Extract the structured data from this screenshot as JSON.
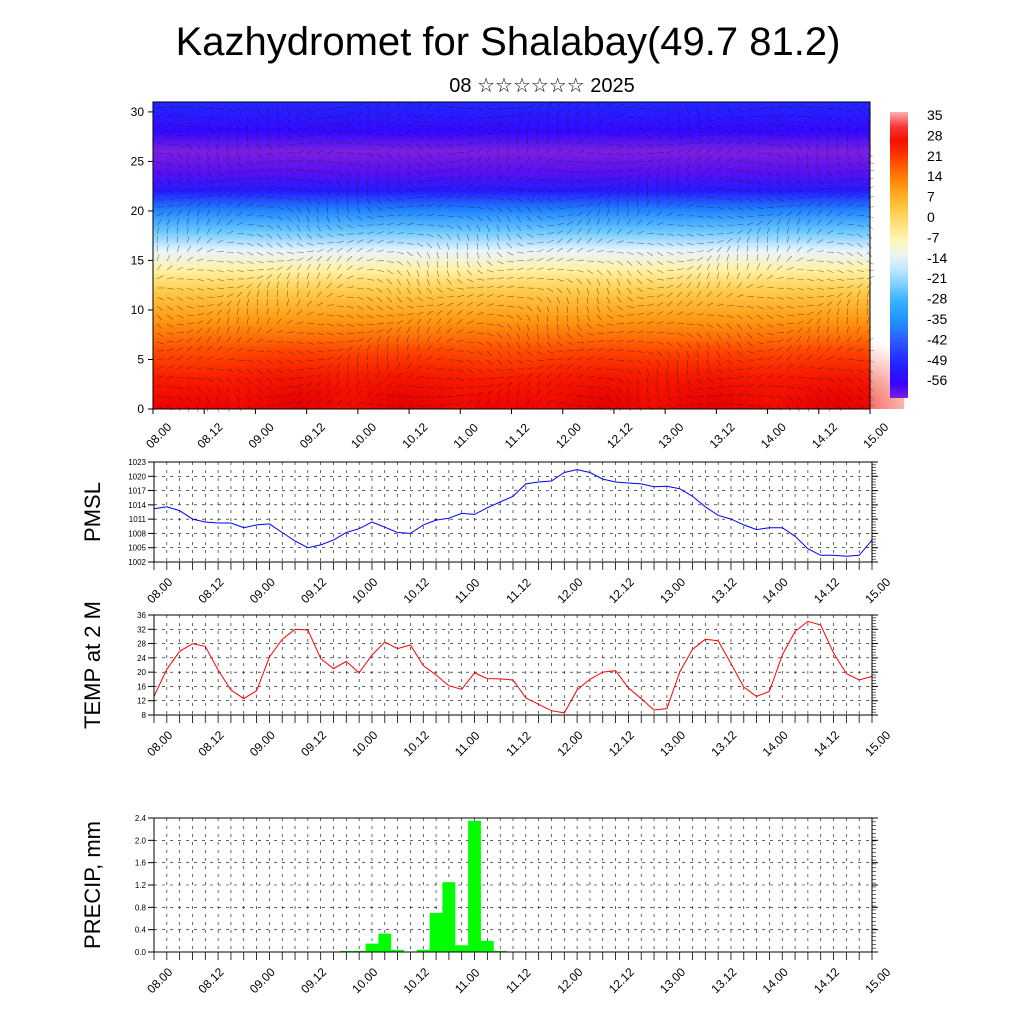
{
  "title": "Kazhydromet for Shalabay(49.7 81.2)",
  "subtitle": "08 ☆☆☆☆☆☆ 2025",
  "time_ticks": [
    "08.00",
    "08.12",
    "09.00",
    "09.12",
    "10.00",
    "10.12",
    "11.00",
    "11.12",
    "12.00",
    "12.12",
    "13.00",
    "13.12",
    "14.00",
    "14.12",
    "15.00"
  ],
  "chart_data": [
    {
      "type": "heatmap",
      "title": "Kazhydromet for Shalabay(49.7 81.2)",
      "subtitle": "08 ☆☆☆☆☆☆ 2025",
      "xlabel": "",
      "ylabel": "",
      "x_ticks": [
        "08.00",
        "08.12",
        "09.00",
        "09.12",
        "10.00",
        "10.12",
        "11.00",
        "11.12",
        "12.00",
        "12.12",
        "13.00",
        "13.12",
        "14.00",
        "14.12",
        "15.00"
      ],
      "y_ticks": [
        0,
        5,
        10,
        15,
        20,
        25,
        30
      ],
      "ylim": [
        0,
        31
      ],
      "colorbar_labels": [
        "35",
        "28",
        "21",
        "14",
        "7",
        "0",
        "-7",
        "-14",
        "-21",
        "-28",
        "-35",
        "-42",
        "-49",
        "-56"
      ],
      "colors": [
        "#8a2be2",
        "#0000ff",
        "#29a8ff",
        "#ffffb0",
        "#ffd040",
        "#ff8000",
        "#ff0000",
        "#ffaaaa"
      ],
      "profile_levels": [
        0,
        3,
        6,
        9,
        12,
        14,
        16,
        18,
        20,
        22,
        24,
        26,
        28,
        31
      ],
      "profile_values": [
        28,
        24,
        18,
        10,
        2,
        -6,
        -14,
        -24,
        -36,
        -50,
        -58,
        -60,
        -54,
        -48
      ],
      "wind_barbs": true
    },
    {
      "type": "line",
      "ylabel": "PMSL",
      "y_ticks": [
        1002,
        1005,
        1008,
        1011,
        1014,
        1017,
        1020,
        1023
      ],
      "ylim": [
        1002,
        1023
      ],
      "x_ticks": [
        "08.00",
        "08.12",
        "09.00",
        "09.12",
        "10.00",
        "10.12",
        "11.00",
        "11.12",
        "12.00",
        "12.12",
        "13.00",
        "13.12",
        "14.00",
        "14.12",
        "15.00"
      ],
      "x": [
        0,
        3,
        6,
        9,
        12,
        15,
        18,
        21,
        24,
        27,
        30,
        33,
        36,
        39,
        42,
        45,
        48,
        51,
        54,
        57,
        60,
        63,
        66,
        69,
        72,
        75,
        78,
        81,
        84,
        87,
        90,
        93,
        96,
        99,
        102,
        105,
        108,
        111,
        114,
        117,
        120,
        123,
        126,
        129,
        132,
        135,
        138,
        141,
        144,
        147,
        150,
        153,
        156,
        159,
        162,
        165,
        168
      ],
      "series": [
        {
          "color": "#0000ff",
          "values": [
            1013.2,
            1013.6,
            1012.8,
            1011.0,
            1010.4,
            1010.2,
            1010.2,
            1009.2,
            1009.8,
            1010.0,
            1008.2,
            1006.4,
            1005.0,
            1005.6,
            1006.6,
            1008.2,
            1009.0,
            1010.4,
            1009.3,
            1008.2,
            1008.0,
            1009.8,
            1010.8,
            1011.2,
            1012.2,
            1012.0,
            1013.4,
            1014.6,
            1015.8,
            1018.4,
            1018.8,
            1019.0,
            1020.8,
            1021.4,
            1020.8,
            1019.4,
            1018.8,
            1018.6,
            1018.4,
            1017.8,
            1017.9,
            1017.4,
            1015.8,
            1013.6,
            1011.8,
            1011.0,
            1009.8,
            1008.8,
            1009.2,
            1009.2,
            1007.4,
            1004.8,
            1003.4,
            1003.4,
            1003.2,
            1003.4,
            1006.6
          ]
        }
      ]
    },
    {
      "type": "line",
      "ylabel": "TEMP at 2 M",
      "y_ticks": [
        8,
        12,
        16,
        20,
        24,
        28,
        32,
        36
      ],
      "ylim": [
        8,
        36
      ],
      "x_ticks": [
        "08.00",
        "08.12",
        "09.00",
        "09.12",
        "10.00",
        "10.12",
        "11.00",
        "11.12",
        "12.00",
        "12.12",
        "13.00",
        "13.12",
        "14.00",
        "14.12",
        "15.00"
      ],
      "x": [
        0,
        3,
        6,
        9,
        12,
        15,
        18,
        21,
        24,
        27,
        30,
        33,
        36,
        39,
        42,
        45,
        48,
        51,
        54,
        57,
        60,
        63,
        66,
        69,
        72,
        75,
        78,
        81,
        84,
        87,
        90,
        93,
        96,
        99,
        102,
        105,
        108,
        111,
        114,
        117,
        120,
        123,
        126,
        129,
        132,
        135,
        138,
        141,
        144,
        147,
        150,
        153,
        156,
        159,
        162,
        165,
        168
      ],
      "series": [
        {
          "color": "#ff0000",
          "values": [
            13.2,
            20.8,
            25.8,
            28.0,
            27.2,
            20.6,
            15.0,
            12.6,
            14.8,
            24.2,
            29.2,
            32.0,
            31.8,
            23.8,
            21.0,
            23.0,
            19.8,
            24.8,
            28.4,
            26.6,
            27.6,
            21.8,
            19.2,
            16.2,
            15.2,
            19.8,
            18.2,
            18.1,
            17.8,
            12.8,
            11.0,
            9.2,
            8.6,
            15.0,
            18.0,
            20.0,
            20.4,
            15.6,
            12.6,
            9.4,
            9.8,
            20.0,
            26.4,
            29.2,
            28.8,
            22.4,
            15.8,
            13.2,
            14.6,
            24.8,
            31.4,
            34.2,
            33.2,
            25.4,
            19.6,
            17.8,
            18.8
          ]
        }
      ]
    },
    {
      "type": "bar",
      "ylabel": "PRECIP, mm",
      "y_ticks": [
        "0.0",
        "0.4",
        "0.8",
        "1.2",
        "1.6",
        "2.0",
        "2.4"
      ],
      "ylim": [
        0,
        2.4
      ],
      "x_ticks": [
        "08.00",
        "08.12",
        "09.00",
        "09.12",
        "10.00",
        "10.12",
        "11.00",
        "11.12",
        "12.00",
        "12.12",
        "13.00",
        "13.12",
        "14.00",
        "14.12",
        "15.00"
      ],
      "x": [
        45,
        48,
        51,
        54,
        57,
        60,
        63,
        66,
        69,
        72,
        75,
        78,
        81
      ],
      "values": [
        0.02,
        0.02,
        0.15,
        0.33,
        0.04,
        0.0,
        0.04,
        0.7,
        1.25,
        0.12,
        2.35,
        0.2,
        0.02
      ],
      "color": "#00ff00"
    }
  ]
}
